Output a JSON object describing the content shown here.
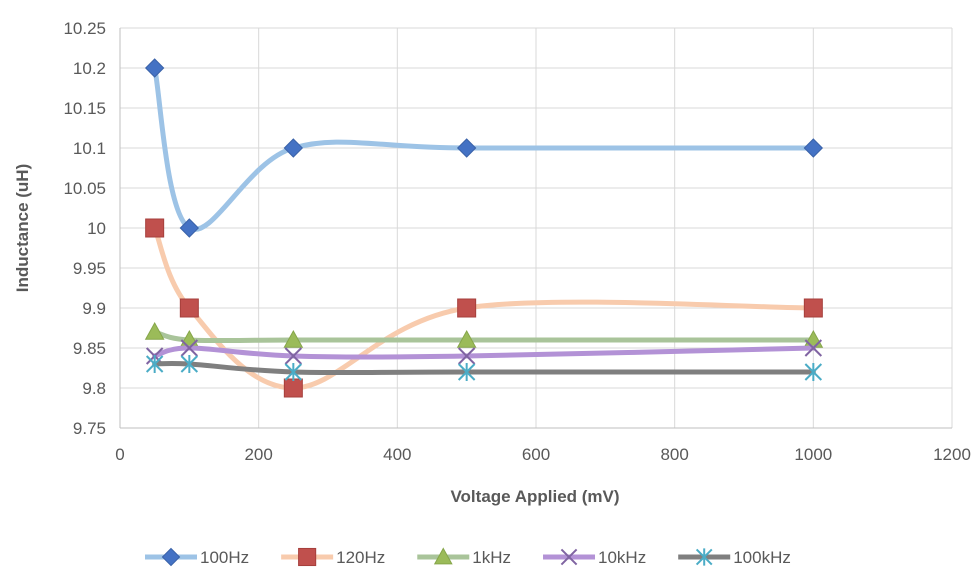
{
  "chart_data": {
    "type": "line",
    "title": "",
    "xlabel": "Voltage Applied (mV)",
    "ylabel": "Inductance (uH)",
    "xlim": [
      0,
      1200
    ],
    "ylim": [
      9.75,
      10.25
    ],
    "xticks": [
      "0",
      "200",
      "400",
      "600",
      "800",
      "1000",
      "1200"
    ],
    "yticks": [
      "9.75",
      "9.8",
      "9.85",
      "9.9",
      "9.95",
      "10",
      "10.05",
      "10.1",
      "10.15",
      "10.2",
      "10.25"
    ],
    "grid": true,
    "smoothed": true,
    "legend_position": "bottom",
    "x": [
      50,
      100,
      250,
      500,
      1000
    ],
    "series": [
      {
        "name": "100Hz",
        "values": [
          10.2,
          10.0,
          10.1,
          10.1,
          10.1
        ],
        "line_color": "#9DC3E6",
        "marker_color": "#4472C4",
        "marker": "diamond"
      },
      {
        "name": "120Hz",
        "values": [
          10.0,
          9.9,
          9.8,
          9.9,
          9.9
        ],
        "line_color": "#F8CBAD",
        "marker_color": "#C0504D",
        "marker": "square"
      },
      {
        "name": "1kHz",
        "values": [
          9.87,
          9.86,
          9.86,
          9.86,
          9.86
        ],
        "line_color": "#A9C49A",
        "marker_color": "#9BBB59",
        "marker": "triangle"
      },
      {
        "name": "10kHz",
        "values": [
          9.84,
          9.85,
          9.84,
          9.84,
          9.85
        ],
        "line_color": "#B392D6",
        "marker_color": "#8064A2",
        "marker": "x"
      },
      {
        "name": "100kHz",
        "values": [
          9.83,
          9.83,
          9.82,
          9.82,
          9.82
        ],
        "line_color": "#7F7F7F",
        "marker_color": "#4BACC6",
        "marker": "star"
      }
    ]
  }
}
